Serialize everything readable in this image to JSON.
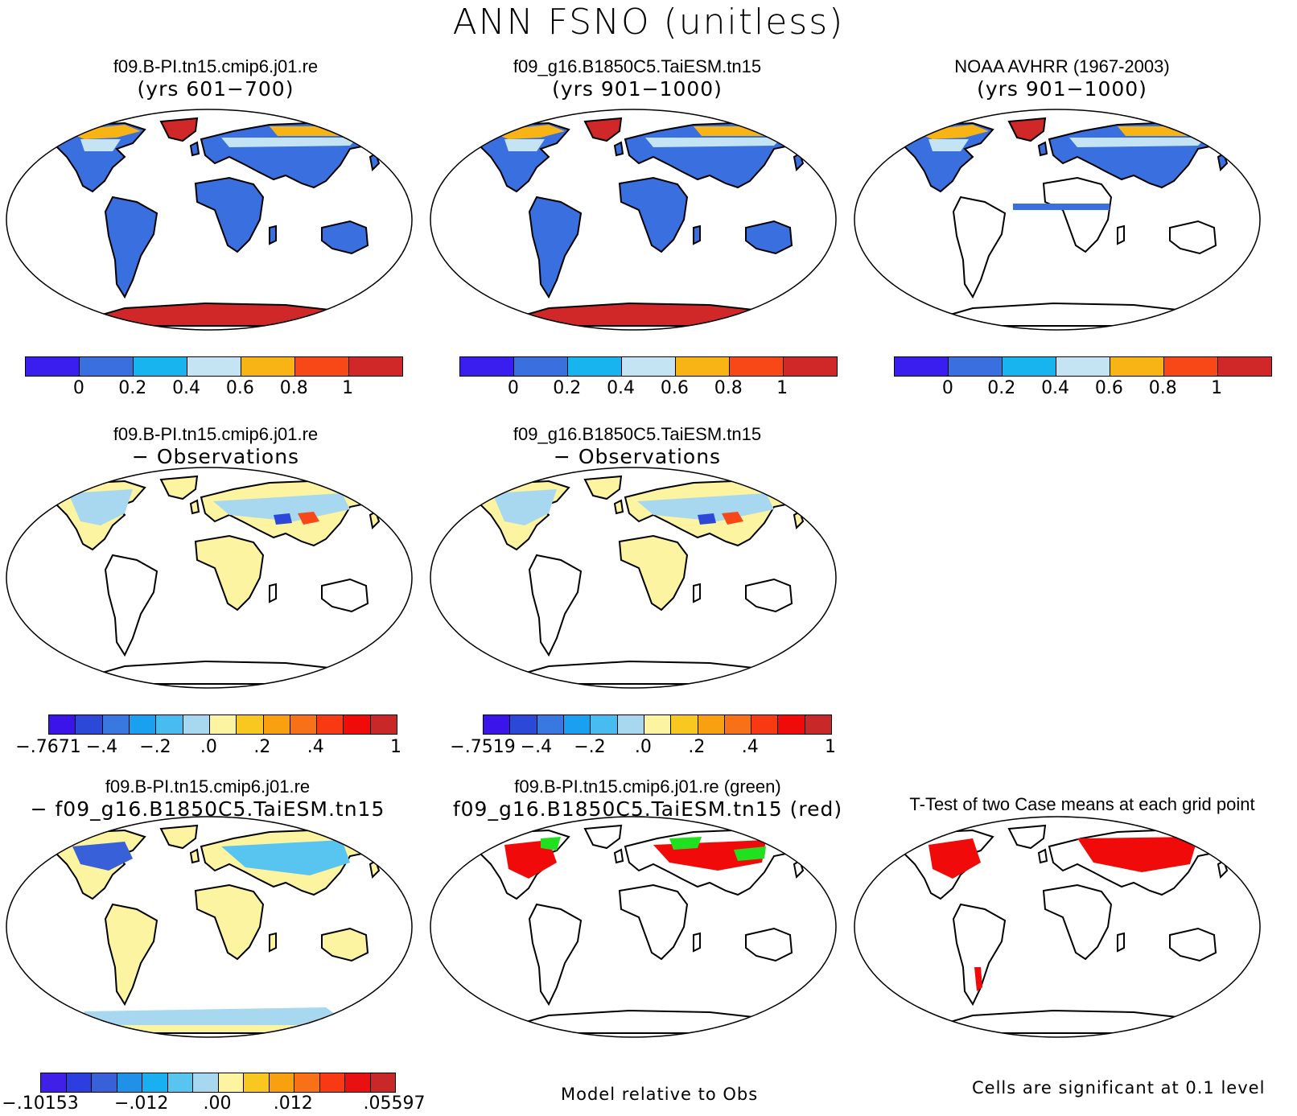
{
  "figure": {
    "title": "ANN FSNO (unitless)"
  },
  "panels": [
    {
      "id": "p1",
      "title1": "f09.B-PI.tn15.cmip6.j01.re",
      "title2": "(yrs 601−700)",
      "field": "abs",
      "coverage": "global"
    },
    {
      "id": "p2",
      "title1": "f09_g16.B1850C5.TaiESM.tn15",
      "title2": "(yrs 901−1000)",
      "field": "abs",
      "coverage": "global"
    },
    {
      "id": "p3",
      "title1": "NOAA AVHRR (1967-2003)",
      "title2": "(yrs 901−1000)",
      "field": "abs",
      "coverage": "north"
    },
    {
      "id": "p4",
      "title1": "f09.B-PI.tn15.cmip6.j01.re",
      "title2": "− Observations",
      "field": "diff",
      "coverage": "north"
    },
    {
      "id": "p5",
      "title1": "f09_g16.B1850C5.TaiESM.tn15",
      "title2": "− Observations",
      "field": "diff",
      "coverage": "north"
    },
    {
      "id": "p6",
      "title1": "f09.B-PI.tn15.cmip6.j01.re",
      "title2": "− f09_g16.B1850C5.TaiESM.tn15",
      "field": "modeldiff",
      "coverage": "global"
    },
    {
      "id": "p7",
      "title1": "f09.B-PI.tn15.cmip6.j01.re (green)",
      "title2": "f09_g16.B1850C5.TaiESM.tn15 (red)",
      "field": "greenred",
      "coverage": "north"
    },
    {
      "id": "p8",
      "title1": "T-Test of two Case means at each grid point",
      "title2": "",
      "field": "ttest",
      "coverage": "north"
    }
  ],
  "colorbars": [
    {
      "id": "cb1",
      "colors": [
        "#3a1ef0",
        "#3a6fe0",
        "#18b4f0",
        "#c4e4f4",
        "#f8b414",
        "#f84818",
        "#d02828"
      ],
      "ticks": [
        "0",
        "0.2",
        "0.4",
        "0.6",
        "0.8",
        "1"
      ]
    },
    {
      "id": "cb2",
      "colors": [
        "#3a1ef0",
        "#3a6fe0",
        "#18b4f0",
        "#c4e4f4",
        "#f8b414",
        "#f84818",
        "#d02828"
      ],
      "ticks": [
        "0",
        "0.2",
        "0.4",
        "0.6",
        "0.8",
        "1"
      ]
    },
    {
      "id": "cb3",
      "colors": [
        "#3a1ef0",
        "#3a6fe0",
        "#18b4f0",
        "#c4e4f4",
        "#f8b414",
        "#f84818",
        "#d02828"
      ],
      "ticks": [
        "0",
        "0.2",
        "0.4",
        "0.6",
        "0.8",
        "1"
      ]
    },
    {
      "id": "cb4",
      "colors": [
        "#3a14e8",
        "#2c48d8",
        "#3878e0",
        "#1aa0f0",
        "#48bcf0",
        "#a8d8f0",
        "#fcf4a0",
        "#f8c820",
        "#f8a010",
        "#f87018",
        "#f83a14",
        "#f00a0a",
        "#c82828"
      ],
      "ticks": [
        "−.7671",
        "−.4",
        "−.2",
        ".0",
        ".2",
        ".4",
        "1"
      ]
    },
    {
      "id": "cb5",
      "colors": [
        "#3a14e8",
        "#2c48d8",
        "#3878e0",
        "#1aa0f0",
        "#48bcf0",
        "#a8d8f0",
        "#fcf4a0",
        "#f8c820",
        "#f8a010",
        "#f87018",
        "#f83a14",
        "#f00a0a",
        "#c82828"
      ],
      "ticks": [
        "−.7519",
        "−.4",
        "−.2",
        ".0",
        ".2",
        ".4",
        "1"
      ]
    },
    {
      "id": "cb6",
      "colors": [
        "#4020e8",
        "#2c3ee0",
        "#3860d8",
        "#2090e8",
        "#18b0f0",
        "#58c4f0",
        "#a8d8f0",
        "#fcf4a0",
        "#f8c820",
        "#f8a010",
        "#f87018",
        "#f83a14",
        "#e81010",
        "#c82828"
      ],
      "ticks": [
        "−.10153",
        "−.012",
        ".00",
        ".012",
        ".05597"
      ]
    }
  ],
  "notes": {
    "model_relative": "Model relative to Obs",
    "significance": "Cells are significant at 0.1 level"
  },
  "colors": {
    "ocean": "#ffffff",
    "coast": "#000000",
    "low": "#3a6fe0",
    "mid": "#c4e4f4",
    "high": "#f8b414",
    "ice": "#d02828",
    "diffpos": "#fcf4a0",
    "diffneg": "#a8d8f0",
    "green": "#20e020",
    "red": "#f00a0a"
  }
}
